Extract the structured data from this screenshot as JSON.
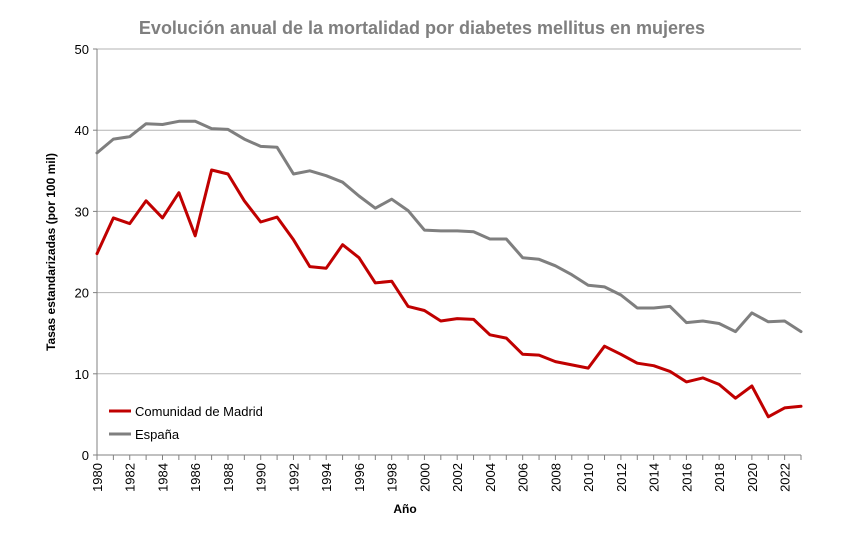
{
  "chart_data": {
    "type": "line",
    "title": "Evolución anual de la mortalidad por diabetes mellitus en mujeres",
    "xlabel": "Año",
    "ylabel": "Tasas estandarizadas (por 100 mil)",
    "xlim": [
      1980,
      2023
    ],
    "ylim": [
      0,
      50
    ],
    "yticks": [
      0,
      10,
      20,
      30,
      40,
      50
    ],
    "xticks": [
      "1980",
      "1982",
      "1984",
      "1986",
      "1988",
      "1990",
      "1992",
      "1994",
      "1996",
      "1998",
      "2000",
      "2002",
      "2004",
      "2006",
      "2008",
      "2010",
      "2012",
      "2014",
      "2016",
      "2018",
      "2020",
      "2022"
    ],
    "grid": true,
    "legend_position": "bottom-left",
    "x": [
      1980,
      1981,
      1982,
      1983,
      1984,
      1985,
      1986,
      1987,
      1988,
      1989,
      1990,
      1991,
      1992,
      1993,
      1994,
      1995,
      1996,
      1997,
      1998,
      1999,
      2000,
      2001,
      2002,
      2003,
      2004,
      2005,
      2006,
      2007,
      2008,
      2009,
      2010,
      2011,
      2012,
      2013,
      2014,
      2015,
      2016,
      2017,
      2018,
      2019,
      2020,
      2021,
      2022,
      2023
    ],
    "series": [
      {
        "name": "Comunidad de Madrid",
        "color": "#c00000",
        "values": [
          24.8,
          29.2,
          28.5,
          31.3,
          29.2,
          32.3,
          27.0,
          35.1,
          34.6,
          31.3,
          28.7,
          29.3,
          26.5,
          23.2,
          23.0,
          25.9,
          24.3,
          21.2,
          21.4,
          18.3,
          17.8,
          16.5,
          16.8,
          16.7,
          14.8,
          14.4,
          12.4,
          12.3,
          11.5,
          11.1,
          10.7,
          13.4,
          12.4,
          11.3,
          11.0,
          10.3,
          9.0,
          9.5,
          8.7,
          7.0,
          8.5,
          4.7,
          5.8,
          6.0
        ]
      },
      {
        "name": "España",
        "color": "#7f7f7f",
        "values": [
          37.2,
          38.9,
          39.2,
          40.8,
          40.7,
          41.1,
          41.1,
          40.2,
          40.1,
          38.9,
          38.0,
          37.9,
          34.6,
          35.0,
          34.4,
          33.6,
          31.9,
          30.4,
          31.5,
          30.1,
          27.7,
          27.6,
          27.6,
          27.5,
          26.6,
          26.6,
          24.3,
          24.1,
          23.3,
          22.2,
          20.9,
          20.7,
          19.7,
          18.1,
          18.1,
          18.3,
          16.3,
          16.5,
          16.2,
          15.2,
          17.5,
          16.4,
          16.5,
          15.2
        ]
      }
    ]
  }
}
